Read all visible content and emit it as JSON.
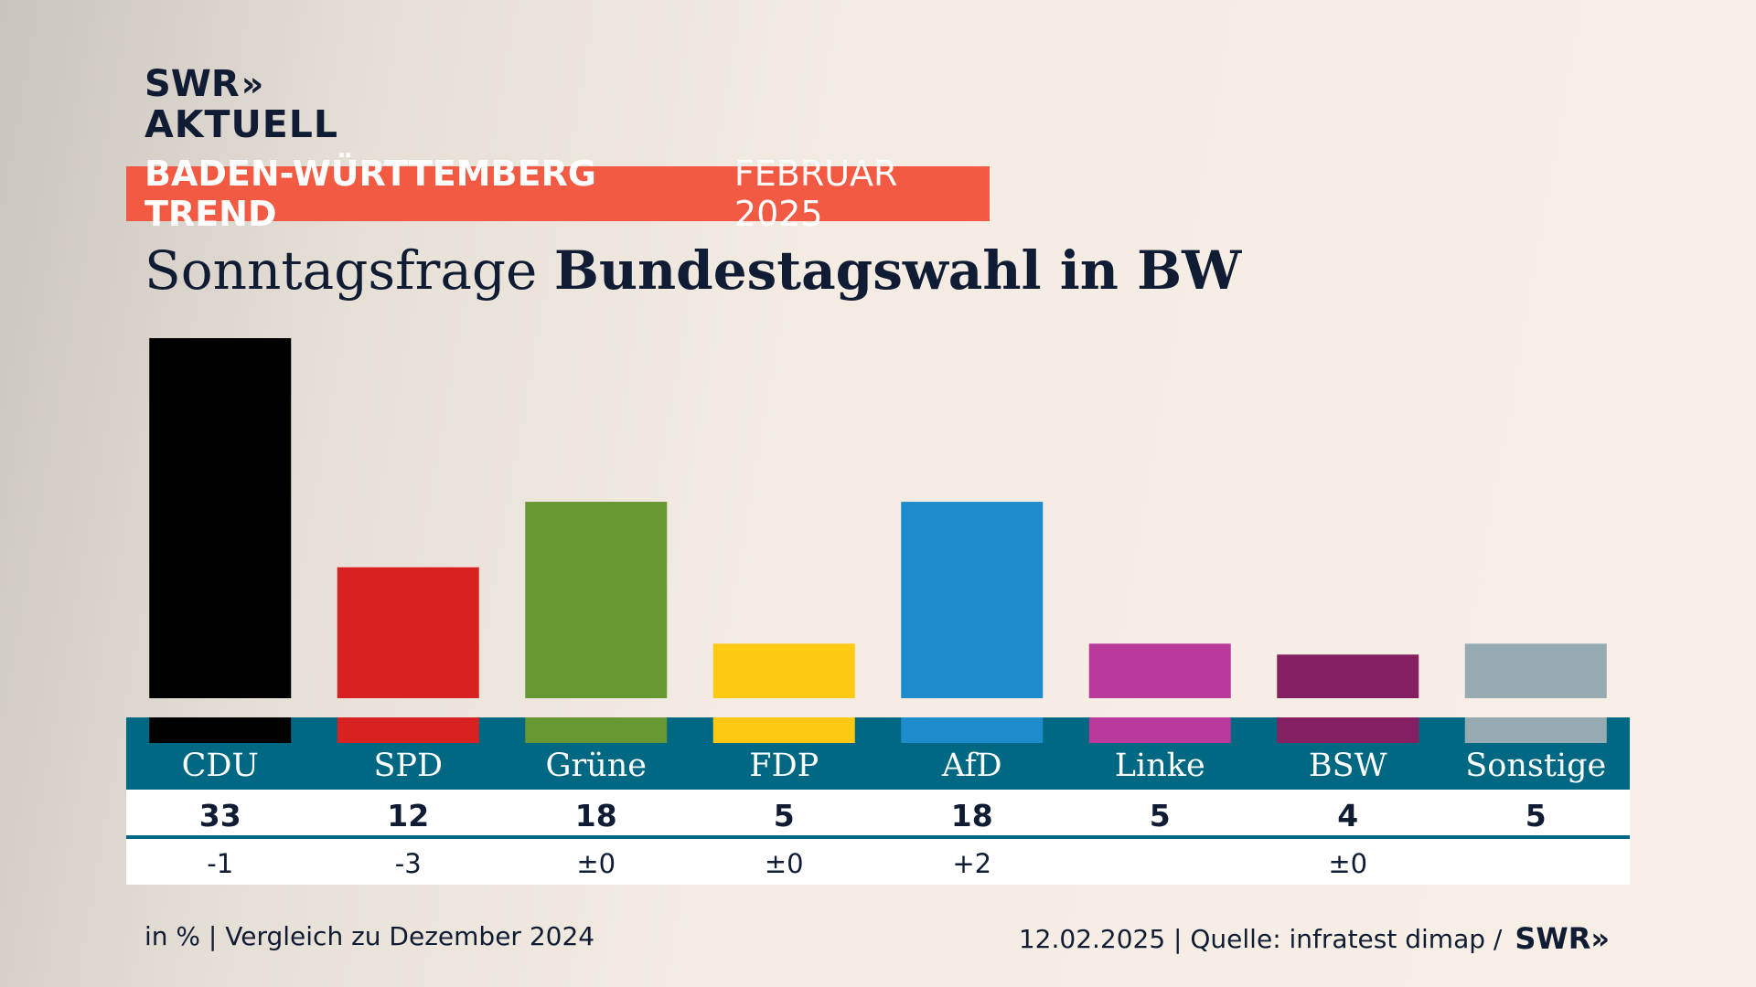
{
  "logo": {
    "line1": "SWR",
    "chevrons": "»",
    "line2": "AKTUELL"
  },
  "kicker": {
    "bold": "BADEN-WÜRTTEMBERG TREND",
    "regular": "FEBRUAR 2025"
  },
  "title": {
    "regular": "Sonntagsfrage",
    "bold": "Bundestagswahl in BW"
  },
  "chart_data": {
    "type": "bar",
    "categories": [
      "CDU",
      "SPD",
      "Grüne",
      "FDP",
      "AfD",
      "Linke",
      "BSW",
      "Sonstige"
    ],
    "values": [
      33,
      12,
      18,
      5,
      18,
      5,
      4,
      5
    ],
    "changes": [
      "-1",
      "-3",
      "±0",
      "±0",
      "+2",
      "",
      "±0",
      ""
    ],
    "colors": [
      "#000000",
      "#d82222",
      "#669733",
      "#fdc913",
      "#1e8ccc",
      "#b93a9a",
      "#842062",
      "#96abb1"
    ],
    "title": "Sonntagsfrage Bundestagswahl in BW",
    "ylim": [
      0,
      33
    ]
  },
  "colors": {
    "accent": "#f35a44",
    "band": "#006882",
    "text": "#0f1c33"
  },
  "footer": {
    "left": "in % | Vergleich zu Dezember 2024",
    "right": "12.02.2025 | Quelle: infratest dimap /",
    "brand": "SWR",
    "brand_chevrons": "»"
  }
}
